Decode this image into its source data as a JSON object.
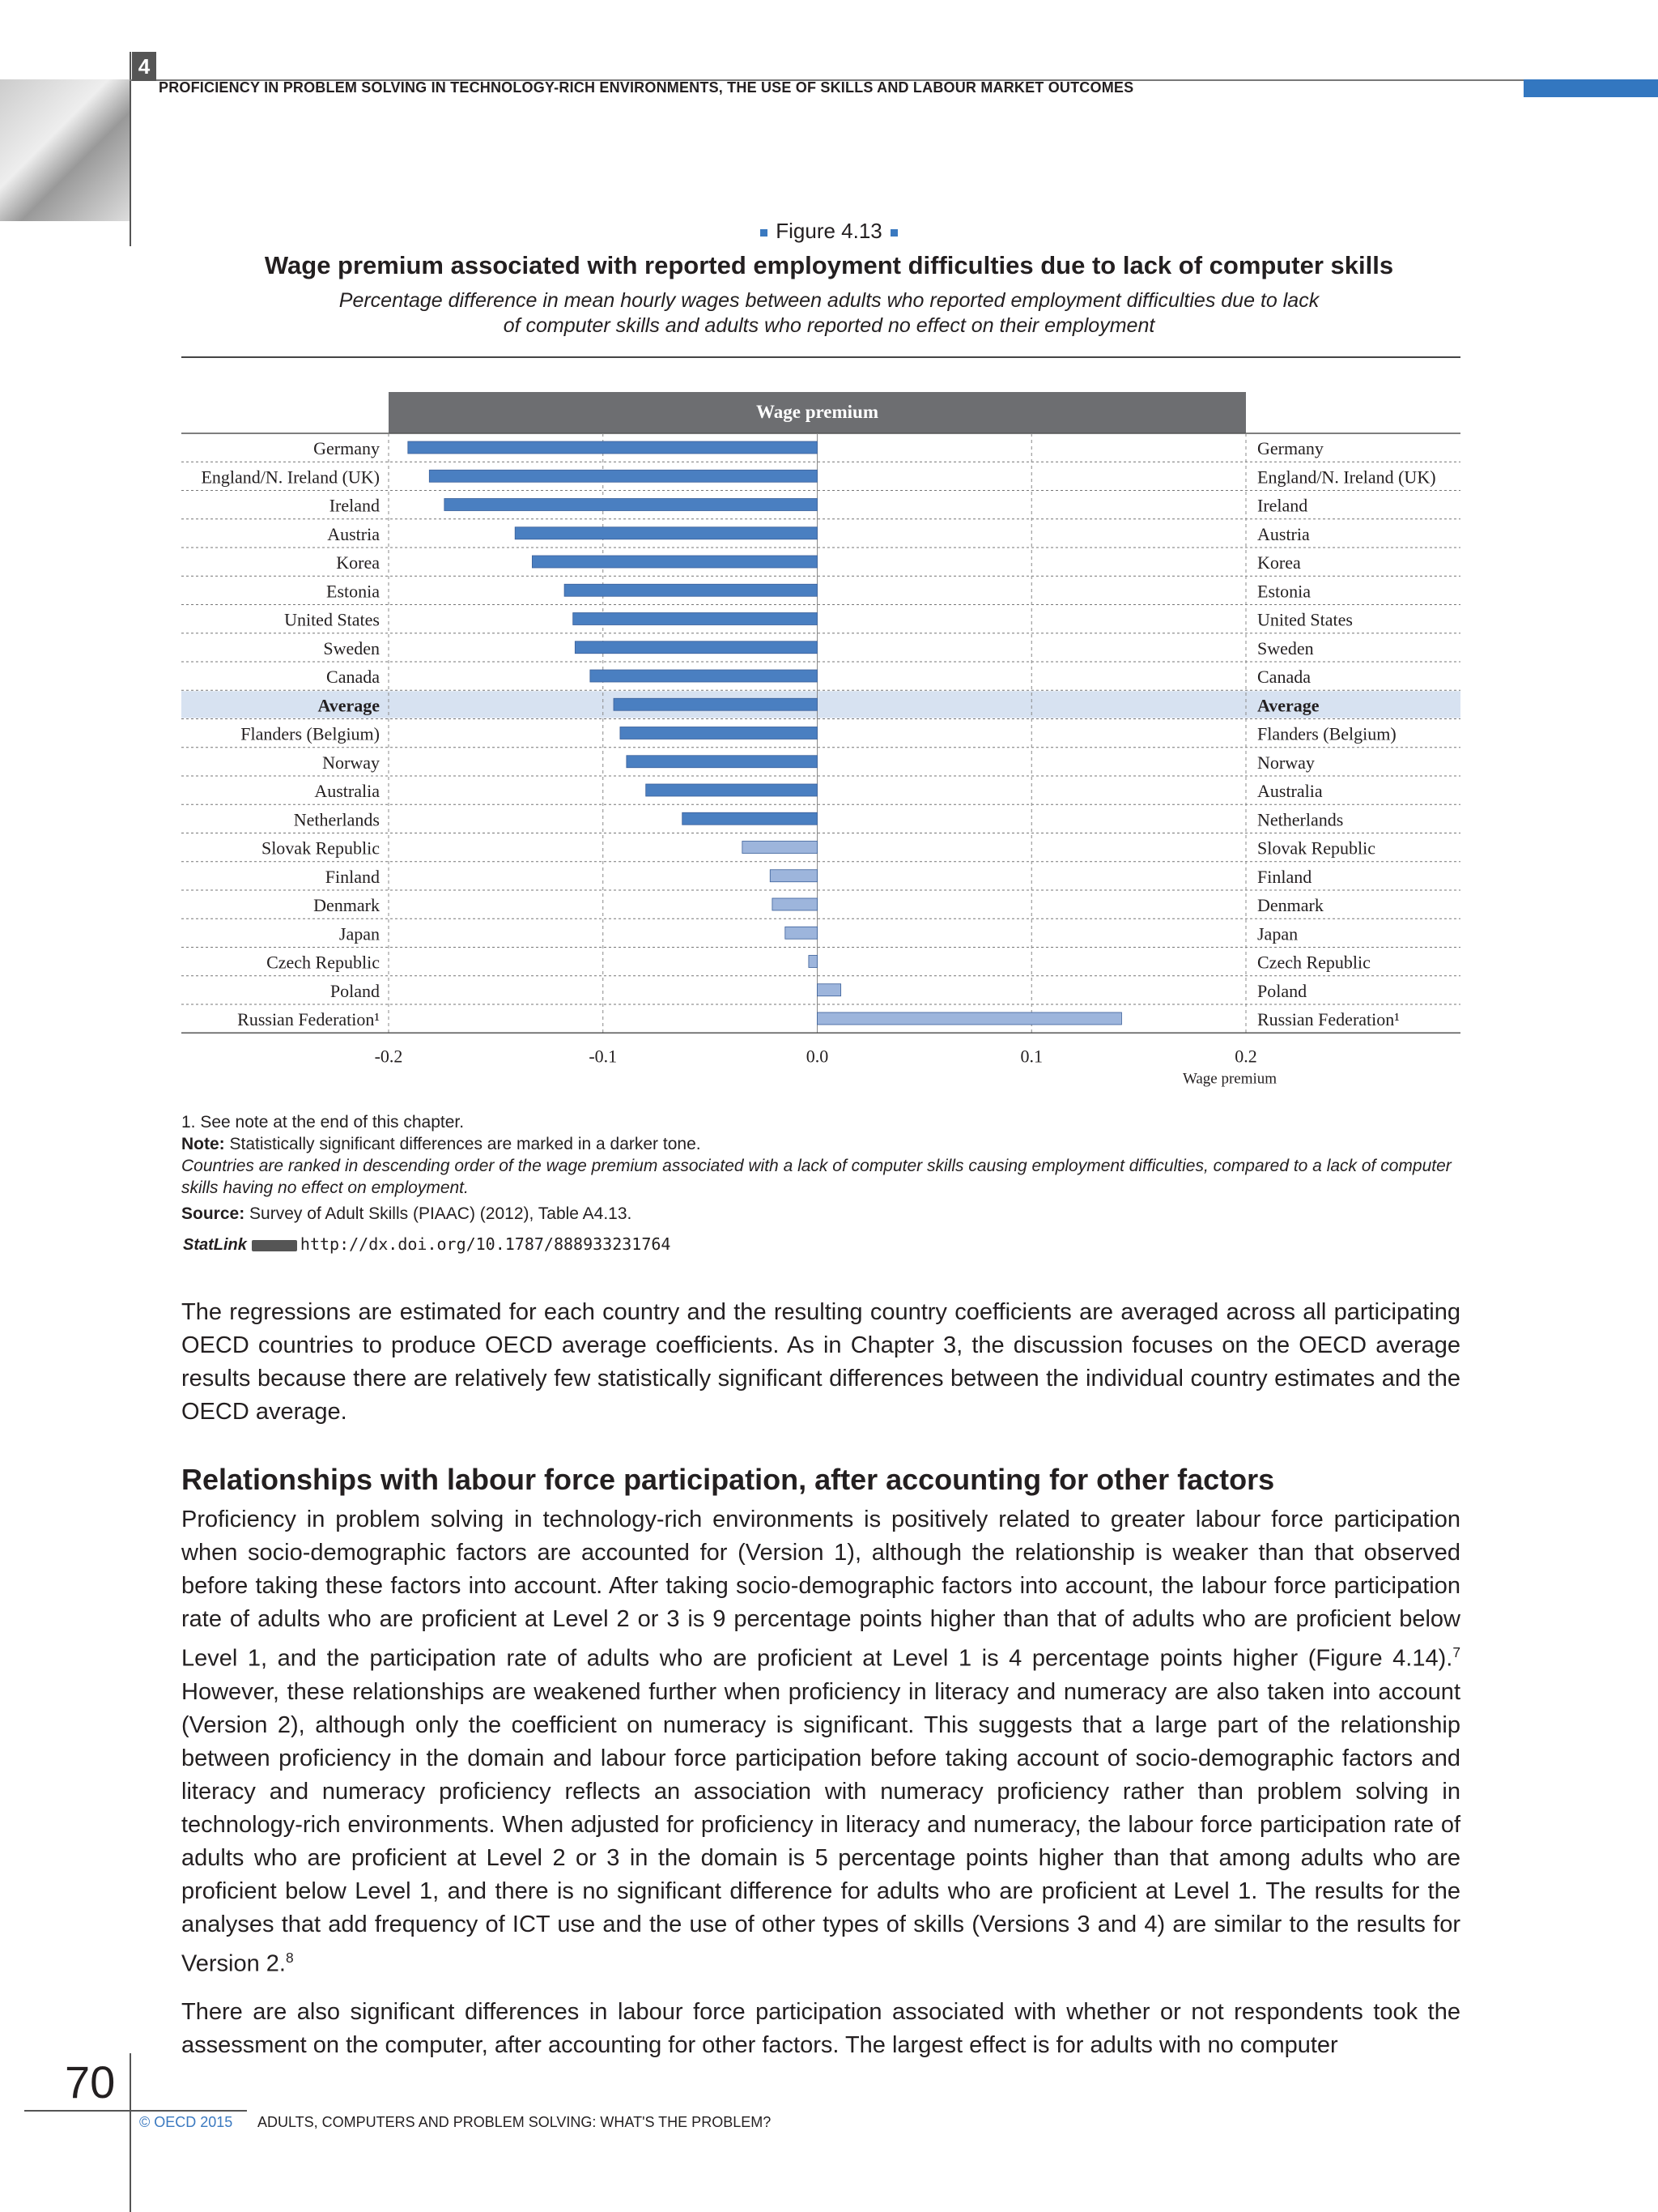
{
  "header": {
    "chapter_number": "4",
    "running_title": "PROFICIENCY IN PROBLEM SOLVING IN TECHNOLOGY-RICH ENVIRONMENTS, THE USE OF SKILLS AND LABOUR MARKET OUTCOMES"
  },
  "figure": {
    "label": "Figure 4.13",
    "title": "Wage premium associated with reported employment difficulties due to lack of computer skills",
    "subtitle_line1": "Percentage difference in mean hourly wages between adults who reported employment difficulties due to lack",
    "subtitle_line2": "of computer skills and adults who reported no effect on their employment"
  },
  "chart_data": {
    "type": "bar",
    "orientation": "horizontal",
    "title": "Wage premium",
    "xlabel": "Wage premium",
    "xlim": [
      -0.2,
      0.2
    ],
    "x_ticks": [
      "-0.2",
      "-0.1",
      "0.0",
      "0.1",
      "0.2"
    ],
    "grid": true,
    "colors": {
      "significant": "#4a7fc1",
      "not_significant": "#9db5dc",
      "highlight_row": "#d7e2f1",
      "header": "#6d6e71"
    },
    "categories": [
      "Germany",
      "England/N. Ireland (UK)",
      "Ireland",
      "Austria",
      "Korea",
      "Estonia",
      "United States",
      "Sweden",
      "Canada",
      "Average",
      "Flanders (Belgium)",
      "Norway",
      "Australia",
      "Netherlands",
      "Slovak Republic",
      "Finland",
      "Denmark",
      "Japan",
      "Czech Republic",
      "Poland",
      "Russian Federation¹"
    ],
    "values": [
      -0.191,
      -0.181,
      -0.174,
      -0.141,
      -0.133,
      -0.118,
      -0.114,
      -0.113,
      -0.106,
      -0.095,
      -0.092,
      -0.089,
      -0.08,
      -0.063,
      -0.035,
      -0.022,
      -0.021,
      -0.015,
      -0.004,
      0.011,
      0.142
    ],
    "significant": [
      true,
      true,
      true,
      true,
      true,
      true,
      true,
      true,
      true,
      true,
      true,
      true,
      true,
      true,
      false,
      false,
      false,
      false,
      false,
      false,
      false
    ],
    "highlight_category": "Average"
  },
  "notes": {
    "note1": "1. See note at the end of this chapter.",
    "note_label": "Note:",
    "note_text": "Statistically significant differences are marked in a darker tone.",
    "ranking": "Countries are ranked in descending order of the wage premium associated with a lack of computer skills causing employment difficulties, compared to a lack of computer skills having no effect on employment.",
    "source_label": "Source:",
    "source_text": "Survey of Adult Skills (PIAAC) (2012), Table A4.13.",
    "statlink_label": "StatLink",
    "statlink_url": "http://dx.doi.org/10.1787/888933231764"
  },
  "body": {
    "para1": "The regressions are estimated for each country and the resulting country coefficients are averaged across all participating OECD countries to produce OECD average coefficients. As in Chapter 3, the discussion focuses on the OECD average results because there are relatively few statistically significant differences between the individual country estimates and the OECD average.",
    "section_heading": "Relationships with labour force participation, after accounting for other factors",
    "para2a": "Proficiency in problem solving in technology-rich environments is positively related to greater labour force participation when socio-demographic factors are accounted for (Version 1), although the relationship is weaker than that observed before taking these factors into account. After taking socio-demographic factors into account, the labour force participation rate of adults who are proficient at Level 2 or 3 is 9 percentage points higher than that of adults who are proficient below Level 1, and the participation rate of adults who are proficient at Level 1 is 4 percentage points higher (Figure 4.14).",
    "para2_sup": "7",
    "para2b": " However, these relationships are weakened further when proficiency in literacy and numeracy are also taken into account (Version 2), although only the coefficient on numeracy is significant. This suggests that a large part of the relationship between proficiency in the domain and labour force participation before taking account of socio-demographic factors and literacy and numeracy proficiency reflects an association with numeracy proficiency rather than problem solving in technology-rich environments. When adjusted for proficiency in literacy and numeracy, the labour force participation rate of adults who are proficient at Level 2 or 3 in the domain is 5 percentage points higher than that among adults who are proficient below Level 1, and there is no significant difference for adults who are proficient at Level 1. The results for the analyses that add frequency of ICT use and the use of other types of skills (Versions 3 and 4) are similar to the results for Version 2.",
    "para2_sup2": "8",
    "para3": "There are also significant differences in labour force participation associated with whether or not respondents took the assessment on the computer, after accounting for other factors. The largest effect is for adults with no computer"
  },
  "footer": {
    "page_number": "70",
    "copyright": "© OECD 2015",
    "book_title": "ADULTS, COMPUTERS AND PROBLEM SOLVING: WHAT'S THE PROBLEM?"
  }
}
